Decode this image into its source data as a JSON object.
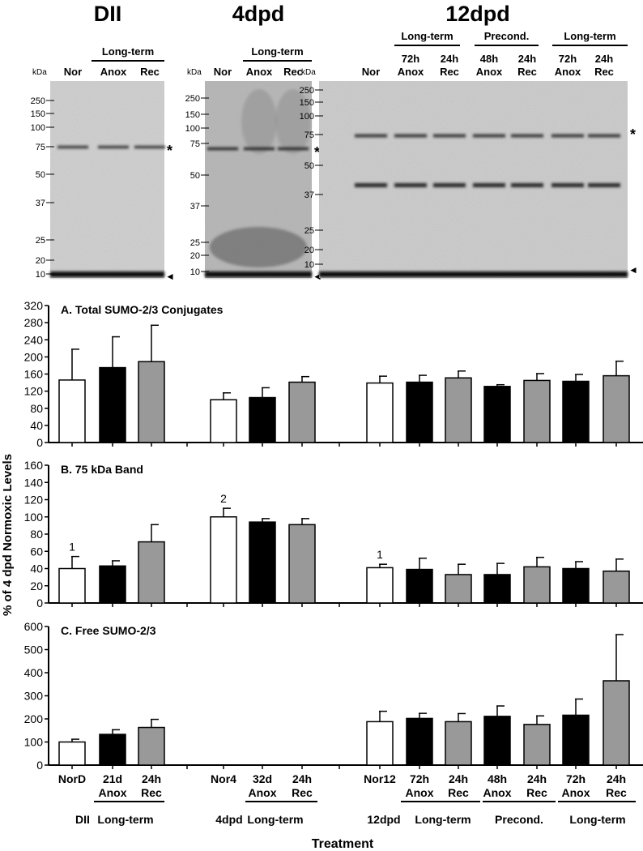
{
  "blots": {
    "groups": [
      {
        "title": "DII",
        "kda_label": "kDa",
        "bracket_label": "Long-term",
        "lanes": [
          {
            "l1": "Nor",
            "l2": ""
          },
          {
            "l1": "Anox",
            "l2": ""
          },
          {
            "l1": "Rec",
            "l2": ""
          }
        ],
        "markers": [
          "250",
          "150",
          "100",
          "75",
          "50",
          "37",
          "25",
          "20",
          "10"
        ],
        "band_star": "*",
        "band_arrow": "◄"
      },
      {
        "title": "4dpd",
        "kda_label": "kDa",
        "bracket_label": "Long-term",
        "lanes": [
          {
            "l1": "Nor",
            "l2": ""
          },
          {
            "l1": "Anox",
            "l2": ""
          },
          {
            "l1": "Rec",
            "l2": ""
          }
        ],
        "markers": [
          "250",
          "150",
          "100",
          "75",
          "50",
          "37",
          "25",
          "20",
          "10"
        ],
        "band_star": "*",
        "band_arrow": "◄"
      },
      {
        "title": "12dpd",
        "kda_label": "kDa",
        "brackets": [
          "Long-term",
          "Precond.",
          "Long-term"
        ],
        "lanes": [
          {
            "l1": "Nor",
            "l2": ""
          },
          {
            "l1": "72h",
            "l2": "Anox"
          },
          {
            "l1": "24h",
            "l2": "Rec"
          },
          {
            "l1": "48h",
            "l2": "Anox"
          },
          {
            "l1": "24h",
            "l2": "Rec"
          },
          {
            "l1": "72h",
            "l2": "Anox"
          },
          {
            "l1": "24h",
            "l2": "Rec"
          }
        ],
        "markers": [
          "250",
          "150",
          "100",
          "75",
          "50",
          "37",
          "25",
          "20",
          "10"
        ],
        "band_star": "*",
        "band_arrow": "◄"
      }
    ]
  },
  "chart_data": {
    "type": "bar",
    "shared_ylabel": "% of 4 dpd Normoxic Levels",
    "xlabel": "Treatment",
    "colors": {
      "normoxic": "#ffffff",
      "anoxia": "#000000",
      "recovery": "#999999"
    },
    "categories": [
      {
        "l1": "NorD",
        "l2": "",
        "fill": "normoxic"
      },
      {
        "l1": "21d",
        "l2": "Anox",
        "fill": "anoxia"
      },
      {
        "l1": "24h",
        "l2": "Rec",
        "fill": "recovery"
      },
      {
        "l1": "Nor4",
        "l2": "",
        "fill": "normoxic"
      },
      {
        "l1": "32d",
        "l2": "Anox",
        "fill": "anoxia"
      },
      {
        "l1": "24h",
        "l2": "Rec",
        "fill": "recovery"
      },
      {
        "l1": "Nor12",
        "l2": "",
        "fill": "normoxic"
      },
      {
        "l1": "72h",
        "l2": "Anox",
        "fill": "anoxia"
      },
      {
        "l1": "24h",
        "l2": "Rec",
        "fill": "recovery"
      },
      {
        "l1": "48h",
        "l2": "Anox",
        "fill": "anoxia"
      },
      {
        "l1": "24h",
        "l2": "Rec",
        "fill": "recovery"
      },
      {
        "l1": "72h",
        "l2": "Anox",
        "fill": "anoxia"
      },
      {
        "l1": "24h",
        "l2": "Rec",
        "fill": "recovery"
      }
    ],
    "group_labels": [
      {
        "prefix": "DII",
        "label": "Long-term"
      },
      {
        "prefix": "4dpd",
        "label": "Long-term"
      },
      {
        "prefix": "12dpd",
        "label": "Long-term"
      },
      {
        "prefix": "",
        "label": "Precond."
      },
      {
        "prefix": "",
        "label": "Long-term"
      }
    ],
    "panels": [
      {
        "title": "A. Total SUMO-2/3 Conjugates",
        "ylim": [
          0,
          320
        ],
        "yticks": [
          0,
          40,
          80,
          120,
          160,
          200,
          240,
          280,
          320
        ],
        "values": [
          146,
          175,
          189,
          100,
          105,
          141,
          139,
          141,
          151,
          131,
          145,
          143,
          156
        ],
        "errors": [
          72,
          72,
          85,
          16,
          23,
          13,
          16,
          16,
          16,
          4,
          16,
          16,
          34
        ],
        "annotations": []
      },
      {
        "title": "B. 75 kDa Band",
        "ylim": [
          0,
          160
        ],
        "yticks": [
          0,
          20,
          40,
          60,
          80,
          100,
          120,
          140,
          160
        ],
        "values": [
          40,
          43,
          71,
          100,
          94,
          91,
          41,
          39,
          33,
          33,
          42,
          40,
          37
        ],
        "errors": [
          14,
          6,
          20,
          10,
          4,
          7,
          4,
          13,
          12,
          13,
          11,
          8,
          14
        ],
        "annotations": [
          {
            "index": 0,
            "text": "1"
          },
          {
            "index": 3,
            "text": "2"
          },
          {
            "index": 6,
            "text": "1"
          }
        ]
      },
      {
        "title": "C. Free SUMO-2/3",
        "ylim": [
          0,
          600
        ],
        "yticks": [
          0,
          100,
          200,
          300,
          400,
          500,
          600
        ],
        "values": [
          100,
          133,
          163,
          null,
          null,
          null,
          188,
          202,
          188,
          211,
          176,
          216,
          365
        ],
        "errors": [
          12,
          20,
          35,
          null,
          null,
          null,
          45,
          22,
          35,
          45,
          37,
          70,
          200
        ],
        "annotations": []
      }
    ]
  }
}
